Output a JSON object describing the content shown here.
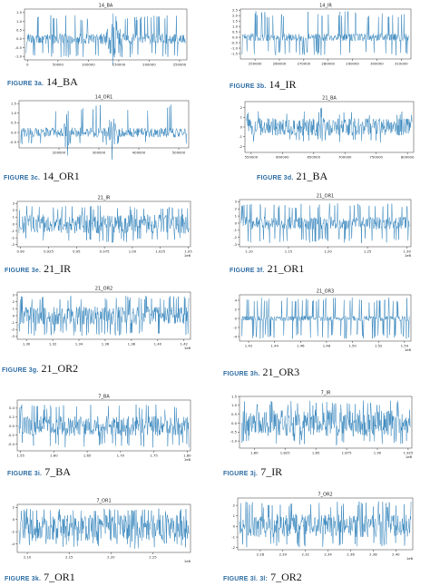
{
  "colors": {
    "signal": "#1f77b4",
    "caption_label": "#2e6da4",
    "axis": "#333333"
  },
  "chart_data": [
    {
      "type": "line",
      "title": "14_BA",
      "caption": {
        "figure": "FIGURE 3a.",
        "name": "14_BA"
      },
      "xlim": [
        -5000,
        262000
      ],
      "ylim": [
        -1.2,
        1.7
      ],
      "xticks": [
        0,
        50000,
        100000,
        150000,
        200000,
        250000
      ],
      "xtick_labels": [
        "0",
        "50000",
        "100000",
        "150000",
        "200000",
        "250000"
      ],
      "yticks": [
        -1.0,
        -0.5,
        0.0,
        0.5,
        1.0,
        1.5
      ],
      "ytick_labels": [
        "-1.0",
        "-0.5",
        "0.0",
        "0.5",
        "1.0",
        "1.5"
      ],
      "x_offset_label": "",
      "signal": {
        "center": 0.0,
        "band": 0.3,
        "spike_max": 1.35,
        "spike_min": -1.05,
        "spikes": 70,
        "seed": 11,
        "bursts": [
          {
            "at": 0.55,
            "width": 0.08,
            "amp": 1.6
          }
        ]
      }
    },
    {
      "type": "line",
      "title": "14_IR",
      "caption": {
        "figure": "FIGURE 3b.",
        "name": "14_IR"
      },
      "xlim": [
        244000,
        314000
      ],
      "ylim": [
        -2.0,
        2.6
      ],
      "xticks": [
        250000,
        260000,
        270000,
        280000,
        290000,
        300000,
        310000
      ],
      "xtick_labels": [
        "250000",
        "260000",
        "270000",
        "280000",
        "290000",
        "300000",
        "310000"
      ],
      "yticks": [
        -1.5,
        -1.0,
        -0.5,
        0.0,
        0.5,
        1.0,
        1.5,
        2.0,
        2.5
      ],
      "ytick_labels": [
        "-1.5",
        "-1.0",
        "-0.5",
        "0.0",
        "0.5",
        "1.0",
        "1.5",
        "2.0",
        "2.5"
      ],
      "x_offset_label": "",
      "signal": {
        "center": 0.0,
        "band": 0.35,
        "spike_max": 2.4,
        "spike_min": -1.7,
        "spikes": 80,
        "seed": 23,
        "bursts": []
      }
    },
    {
      "type": "line",
      "title": "14_OR1",
      "caption": {
        "figure": "FIGURE 3c.",
        "name": "14_OR1"
      },
      "xlim": [
        100000,
        525000
      ],
      "ylim": [
        -0.8,
        1.65
      ],
      "xticks": [
        200000,
        300000,
        400000,
        500000
      ],
      "xtick_labels": [
        "200000",
        "300000",
        "400000",
        "500000"
      ],
      "yticks": [
        -0.5,
        0.0,
        0.5,
        1.0,
        1.5
      ],
      "ytick_labels": [
        "-0.5",
        "0.0",
        "0.5",
        "1.0",
        "1.5"
      ],
      "x_offset_label": "",
      "signal": {
        "center": 0.0,
        "band": 0.25,
        "spike_max": 1.45,
        "spike_min": -0.65,
        "spikes": 25,
        "seed": 37,
        "bursts": [
          {
            "at": 0.28,
            "width": 0.03,
            "amp": 1.4
          },
          {
            "at": 0.55,
            "width": 0.03,
            "amp": 1.5
          }
        ]
      }
    },
    {
      "type": "line",
      "title": "21_BA",
      "caption": {
        "figure": "FIGURE 3d.",
        "name": "21_BA"
      },
      "xlim": [
        540000,
        810000
      ],
      "ylim": [
        -2.6,
        2.6
      ],
      "xticks": [
        550000,
        600000,
        650000,
        700000,
        750000,
        800000
      ],
      "xtick_labels": [
        "550000",
        "600000",
        "650000",
        "700000",
        "750000",
        "800000"
      ],
      "yticks": [
        -2,
        -1,
        0,
        1,
        2
      ],
      "ytick_labels": [
        "-2",
        "-1",
        "0",
        "1",
        "2"
      ],
      "x_offset_label": "",
      "signal": {
        "center": 0.0,
        "band": 0.9,
        "spike_max": 1.6,
        "spike_min": -1.6,
        "spikes": 30,
        "seed": 41,
        "bursts": [
          {
            "at": 0.45,
            "width": 0.04,
            "amp": 2.4
          }
        ]
      }
    },
    {
      "type": "line",
      "title": "21_IR",
      "caption": {
        "figure": "FIGURE 3e.",
        "name": "21_IR"
      },
      "xlim": [
        0.897,
        1.052
      ],
      "ylim": [
        -3.3,
        3.3
      ],
      "xticks": [
        0.9,
        0.925,
        0.95,
        0.975,
        1.0,
        1.025,
        1.05
      ],
      "xtick_labels": [
        "0.90",
        "0.925",
        "0.95",
        "0.975",
        "1.00",
        "1.025",
        "1.05"
      ],
      "yticks": [
        -3,
        -2,
        -1,
        0,
        1,
        2,
        3
      ],
      "ytick_labels": [
        "-3",
        "-2",
        "-1",
        "0",
        "1",
        "2",
        "3"
      ],
      "x_offset_label": "1e6",
      "signal": {
        "center": 0.0,
        "band": 1.4,
        "spike_max": 2.7,
        "spike_min": -2.7,
        "spikes": 60,
        "seed": 53,
        "bursts": []
      }
    },
    {
      "type": "line",
      "title": "21_OR1",
      "caption": {
        "figure": "FIGURE 3f.",
        "name": "21_OR1"
      },
      "xlim": [
        1.088,
        1.305
      ],
      "ylim": [
        -3.3,
        3.3
      ],
      "xticks": [
        1.1,
        1.15,
        1.2,
        1.25,
        1.3
      ],
      "xtick_labels": [
        "1.10",
        "1.15",
        "1.20",
        "1.25",
        "1.30"
      ],
      "yticks": [
        -3,
        -2,
        -1,
        0,
        1,
        2,
        3
      ],
      "ytick_labels": [
        "-3",
        "-2",
        "-1",
        "0",
        "1",
        "2",
        "3"
      ],
      "x_offset_label": "1e6",
      "signal": {
        "center": 0.0,
        "band": 0.9,
        "spike_max": 2.8,
        "spike_min": -2.8,
        "spikes": 90,
        "seed": 67,
        "bursts": []
      }
    },
    {
      "type": "line",
      "title": "21_OR2",
      "caption": {
        "figure": "FIGURE 3g.",
        "name": "21_OR2"
      },
      "xlim": [
        1.293,
        1.425
      ],
      "ylim": [
        -3.4,
        3.4
      ],
      "xticks": [
        1.3,
        1.32,
        1.34,
        1.36,
        1.38,
        1.4,
        1.42
      ],
      "xtick_labels": [
        "1.30",
        "1.32",
        "1.34",
        "1.36",
        "1.38",
        "1.40",
        "1.42"
      ],
      "yticks": [
        -3,
        -2,
        -1,
        0,
        1,
        2,
        3
      ],
      "ytick_labels": [
        "-3",
        "-2",
        "-1",
        "0",
        "1",
        "2",
        "3"
      ],
      "x_offset_label": "1e6",
      "signal": {
        "center": 0.0,
        "band": 1.3,
        "spike_max": 2.9,
        "spike_min": -2.9,
        "spikes": 90,
        "seed": 79,
        "bursts": []
      }
    },
    {
      "type": "line",
      "title": "21_OR3",
      "caption": {
        "figure": "FIGURE 3h.",
        "name": "21_OR3"
      },
      "xlim": [
        1.413,
        1.545
      ],
      "ylim": [
        -5.0,
        5.2
      ],
      "xticks": [
        1.42,
        1.44,
        1.46,
        1.48,
        1.5,
        1.52,
        1.54
      ],
      "xtick_labels": [
        "1.42",
        "1.44",
        "1.46",
        "1.48",
        "1.50",
        "1.52",
        "1.54"
      ],
      "yticks": [
        -4,
        -2,
        0,
        2,
        4
      ],
      "ytick_labels": [
        "-4",
        "-2",
        "0",
        "2",
        "4"
      ],
      "x_offset_label": "1e6",
      "signal": {
        "center": 0.0,
        "band": 0.55,
        "spike_max": 4.6,
        "spike_min": -4.5,
        "spikes": 110,
        "seed": 83,
        "bursts": []
      }
    },
    {
      "type": "line",
      "title": "7_BA",
      "caption": {
        "figure": "FIGURE 3i.",
        "name": "7_BA"
      },
      "xlim": [
        1.545,
        1.805
      ],
      "ylim": [
        -0.55,
        0.58
      ],
      "xticks": [
        1.55,
        1.6,
        1.65,
        1.7,
        1.75,
        1.8
      ],
      "xtick_labels": [
        "1.55",
        "1.60",
        "1.65",
        "1.70",
        "1.75",
        "1.80"
      ],
      "yticks": [
        -0.4,
        -0.2,
        0.0,
        0.2,
        0.4
      ],
      "ytick_labels": [
        "-0.4",
        "-0.2",
        "0.0",
        "0.2",
        "0.4"
      ],
      "x_offset_label": "1e6",
      "signal": {
        "center": 0.0,
        "band": 0.22,
        "spike_max": 0.48,
        "spike_min": -0.48,
        "spikes": 60,
        "seed": 97,
        "bursts": []
      }
    },
    {
      "type": "line",
      "title": "7_IR",
      "caption": {
        "figure": "FIGURE 3j.",
        "name": "7_IR"
      },
      "xlim": [
        1.788,
        1.928
      ],
      "ylim": [
        -1.4,
        1.5
      ],
      "xticks": [
        1.8,
        1.825,
        1.85,
        1.875,
        1.9,
        1.925
      ],
      "xtick_labels": [
        "1.80",
        "1.825",
        "1.85",
        "1.875",
        "1.90",
        "1.925"
      ],
      "yticks": [
        -1.0,
        -0.5,
        0.0,
        0.5,
        1.0,
        1.5
      ],
      "ytick_labels": [
        "-1.0",
        "-0.5",
        "0.0",
        "0.5",
        "1.0",
        "1.5"
      ],
      "x_offset_label": "1e6",
      "signal": {
        "center": 0.0,
        "band": 0.75,
        "spike_max": 1.3,
        "spike_min": -1.25,
        "spikes": 60,
        "seed": 101,
        "bursts": []
      }
    },
    {
      "type": "line",
      "title": "7_OR1",
      "caption": {
        "figure": "FIGURE 3k.",
        "name": "7_OR1"
      },
      "xlim": [
        2.088,
        2.295
      ],
      "ylim": [
        -5.4,
        2.5
      ],
      "xticks": [
        2.1,
        2.15,
        2.2,
        2.25
      ],
      "xtick_labels": [
        "2.10",
        "2.15",
        "2.20",
        "2.25"
      ],
      "yticks": [
        -4,
        -2,
        0,
        2
      ],
      "ytick_labels": [
        "-4",
        "-2",
        "0",
        "2"
      ],
      "x_offset_label": "1e6",
      "signal": {
        "center": -1.4,
        "band": 2.2,
        "spike_max": 1.8,
        "spike_min": -4.8,
        "spikes": 60,
        "seed": 113,
        "bursts": []
      }
    },
    {
      "type": "line",
      "title": "7_OR2",
      "caption": {
        "figure": "FIGURE 3l. 3l:",
        "name": "7_OR2"
      },
      "xlim": [
        2.26,
        2.415
      ],
      "ylim": [
        -2.2,
        2.7
      ],
      "xticks": [
        2.28,
        2.3,
        2.32,
        2.34,
        2.36,
        2.38,
        2.4
      ],
      "xtick_labels": [
        "2.28",
        "2.30",
        "2.32",
        "2.34",
        "2.36",
        "2.38",
        "2.40"
      ],
      "yticks": [
        -2,
        -1,
        0,
        1,
        2
      ],
      "ytick_labels": [
        "-2",
        "-1",
        "0",
        "1",
        "2"
      ],
      "x_offset_label": "1e6",
      "signal": {
        "center": 0.1,
        "band": 1.1,
        "spike_max": 2.4,
        "spike_min": -2.0,
        "spikes": 70,
        "seed": 127,
        "bursts": []
      }
    }
  ]
}
